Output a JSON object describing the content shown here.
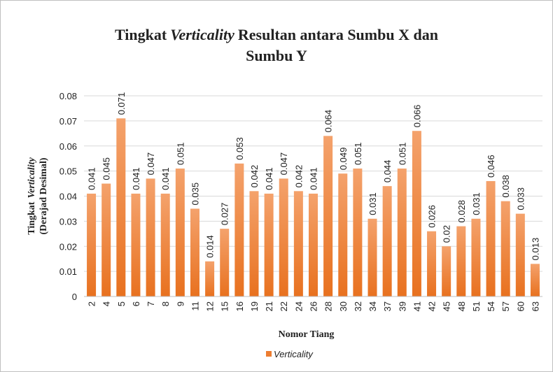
{
  "chart_data": {
    "type": "bar",
    "title": {
      "lines": [
        [
          {
            "text": "Tingkat"
          },
          {
            "text": "Verticality",
            "italic": true
          },
          {
            "text": "Resultan antara Sumbu X dan"
          }
        ],
        [
          {
            "text": "Sumbu Y"
          }
        ]
      ]
    },
    "y_label": {
      "lines": [
        [
          {
            "text": "Tingkat"
          },
          {
            "text": "Verticality",
            "italic": true
          }
        ],
        [
          {
            "text": "(Derajad Desimal)"
          }
        ]
      ]
    },
    "x_label": "Nomor Tiang",
    "categories": [
      "2",
      "4",
      "5",
      "6",
      "7",
      "8",
      "9",
      "11",
      "12",
      "15",
      "16",
      "19",
      "21",
      "22",
      "24",
      "26",
      "28",
      "30",
      "32",
      "34",
      "37",
      "39",
      "41",
      "42",
      "45",
      "48",
      "51",
      "54",
      "57",
      "60",
      "63"
    ],
    "series": [
      {
        "name": "Verticality",
        "color": "#ed7d31",
        "values": [
          0.041,
          0.045,
          0.071,
          0.041,
          0.047,
          0.041,
          0.051,
          0.035,
          0.014,
          0.027,
          0.053,
          0.042,
          0.041,
          0.047,
          0.042,
          0.041,
          0.064,
          0.049,
          0.051,
          0.031,
          0.044,
          0.051,
          0.066,
          0.026,
          0.02,
          0.028,
          0.031,
          0.046,
          0.038,
          0.033,
          0.013
        ]
      }
    ],
    "ylim": [
      0,
      0.08
    ],
    "yticks": [
      0,
      0.01,
      0.02,
      0.03,
      0.04,
      0.05,
      0.06,
      0.07,
      0.08
    ],
    "grid": true,
    "legend": "bottom",
    "data_labels": true
  }
}
